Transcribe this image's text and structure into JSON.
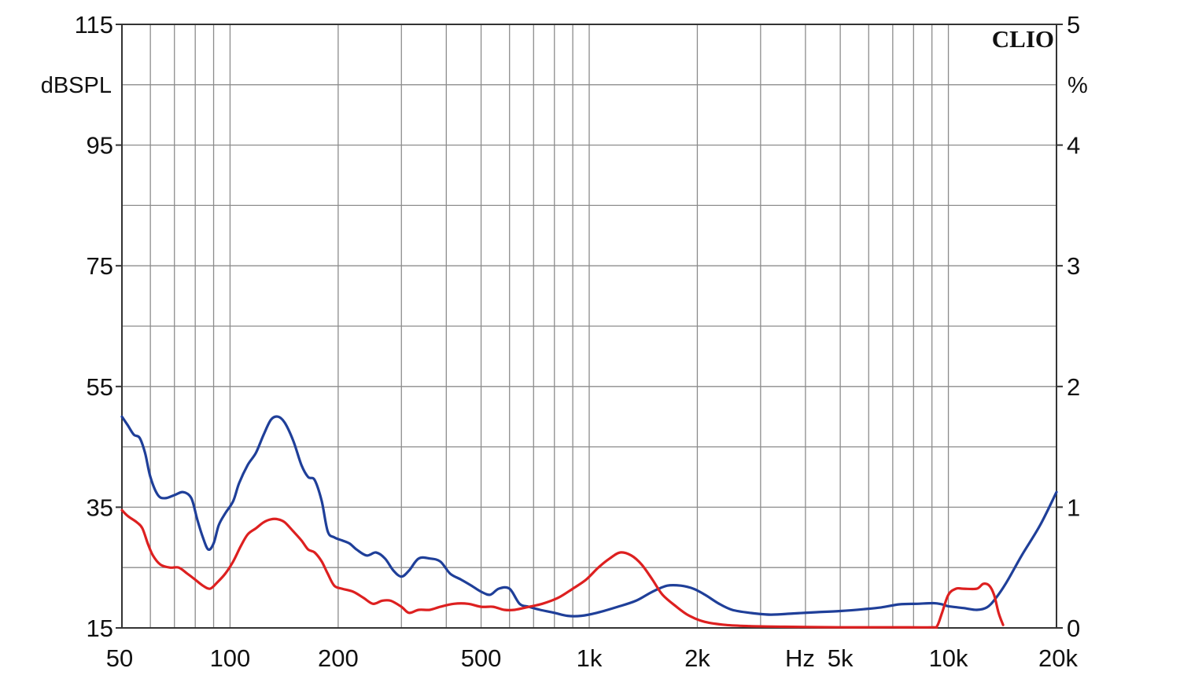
{
  "chart_data": {
    "type": "line",
    "brand": "CLIO",
    "x_scale": "log",
    "xlim": [
      50,
      20000
    ],
    "x_ticks": [
      {
        "value": 50,
        "label": "50"
      },
      {
        "value": 100,
        "label": "100"
      },
      {
        "value": 200,
        "label": "200"
      },
      {
        "value": 500,
        "label": "500"
      },
      {
        "value": 1000,
        "label": "1k"
      },
      {
        "value": 2000,
        "label": "2k"
      },
      {
        "value": 5000,
        "label": "5k"
      },
      {
        "value": 10000,
        "label": "10k"
      },
      {
        "value": 20000,
        "label": "20k"
      }
    ],
    "x_unit": "Hz",
    "y_left": {
      "unit": "dBSPL",
      "lim": [
        15,
        115
      ],
      "ticks": [
        {
          "value": 115,
          "label": "115"
        },
        {
          "value": 95,
          "label": "95"
        },
        {
          "value": 75,
          "label": "75"
        },
        {
          "value": 55,
          "label": "55"
        },
        {
          "value": 35,
          "label": "35"
        },
        {
          "value": 15,
          "label": "15"
        }
      ]
    },
    "y_right": {
      "unit": "%",
      "lim": [
        0,
        5
      ],
      "ticks": [
        {
          "value": 5,
          "label": "5"
        },
        {
          "value": 4,
          "label": "4"
        },
        {
          "value": 3,
          "label": "3"
        },
        {
          "value": 2,
          "label": "2"
        },
        {
          "value": 1,
          "label": "1"
        },
        {
          "value": 0,
          "label": "0"
        }
      ]
    },
    "grid": true,
    "series": [
      {
        "color": "#1f3f99",
        "points": [
          [
            50,
            50
          ],
          [
            52,
            48.5
          ],
          [
            54,
            47
          ],
          [
            56,
            46.5
          ],
          [
            58,
            44
          ],
          [
            60,
            40
          ],
          [
            63,
            37
          ],
          [
            66,
            36.5
          ],
          [
            70,
            37
          ],
          [
            74,
            37.5
          ],
          [
            78,
            36.5
          ],
          [
            81,
            33
          ],
          [
            84,
            30
          ],
          [
            87,
            28
          ],
          [
            90,
            29
          ],
          [
            93,
            32
          ],
          [
            97,
            34
          ],
          [
            102,
            36
          ],
          [
            106,
            39
          ],
          [
            112,
            42
          ],
          [
            118,
            44
          ],
          [
            124,
            47
          ],
          [
            130,
            49.5
          ],
          [
            136,
            50
          ],
          [
            142,
            49
          ],
          [
            150,
            46
          ],
          [
            158,
            42
          ],
          [
            165,
            40
          ],
          [
            172,
            39.5
          ],
          [
            180,
            36
          ],
          [
            187,
            31
          ],
          [
            195,
            30
          ],
          [
            205,
            29.5
          ],
          [
            215,
            29
          ],
          [
            225,
            28
          ],
          [
            240,
            27
          ],
          [
            255,
            27.5
          ],
          [
            270,
            26.5
          ],
          [
            285,
            24.5
          ],
          [
            300,
            23.5
          ],
          [
            315,
            24.5
          ],
          [
            335,
            26.5
          ],
          [
            360,
            26.5
          ],
          [
            385,
            26
          ],
          [
            410,
            24
          ],
          [
            440,
            23
          ],
          [
            470,
            22
          ],
          [
            500,
            21
          ],
          [
            530,
            20.5
          ],
          [
            560,
            21.5
          ],
          [
            600,
            21.5
          ],
          [
            640,
            19
          ],
          [
            680,
            18.5
          ],
          [
            730,
            18
          ],
          [
            800,
            17.5
          ],
          [
            870,
            17
          ],
          [
            950,
            17
          ],
          [
            1050,
            17.5
          ],
          [
            1200,
            18.5
          ],
          [
            1350,
            19.5
          ],
          [
            1500,
            21
          ],
          [
            1650,
            22
          ],
          [
            1800,
            22
          ],
          [
            1950,
            21.5
          ],
          [
            2100,
            20.5
          ],
          [
            2300,
            19
          ],
          [
            2500,
            18
          ],
          [
            2800,
            17.5
          ],
          [
            3200,
            17.2
          ],
          [
            3700,
            17.4
          ],
          [
            4300,
            17.6
          ],
          [
            5000,
            17.8
          ],
          [
            5800,
            18.1
          ],
          [
            6500,
            18.4
          ],
          [
            7300,
            18.9
          ],
          [
            8200,
            19
          ],
          [
            9100,
            19.1
          ],
          [
            9600,
            18.9
          ],
          [
            10000,
            18.6
          ],
          [
            11000,
            18.3
          ],
          [
            12000,
            18
          ],
          [
            12800,
            18.4
          ],
          [
            13500,
            19.8
          ],
          [
            14500,
            22.5
          ],
          [
            16000,
            27
          ],
          [
            18000,
            32
          ],
          [
            20000,
            37.5
          ]
        ]
      },
      {
        "color": "#dd2020",
        "points": [
          [
            50,
            34.5
          ],
          [
            52,
            33.5
          ],
          [
            55,
            32.5
          ],
          [
            57,
            31.5
          ],
          [
            59,
            29
          ],
          [
            61,
            27
          ],
          [
            64,
            25.5
          ],
          [
            68,
            25
          ],
          [
            72,
            25
          ],
          [
            76,
            24
          ],
          [
            80,
            23
          ],
          [
            84,
            22
          ],
          [
            88,
            21.5
          ],
          [
            92,
            22.5
          ],
          [
            97,
            24
          ],
          [
            102,
            26
          ],
          [
            107,
            28.5
          ],
          [
            112,
            30.5
          ],
          [
            118,
            31.5
          ],
          [
            124,
            32.5
          ],
          [
            130,
            33
          ],
          [
            136,
            33
          ],
          [
            142,
            32.5
          ],
          [
            150,
            31
          ],
          [
            158,
            29.5
          ],
          [
            165,
            28
          ],
          [
            172,
            27.5
          ],
          [
            180,
            26
          ],
          [
            187,
            24
          ],
          [
            195,
            22
          ],
          [
            205,
            21.5
          ],
          [
            220,
            21
          ],
          [
            235,
            20
          ],
          [
            250,
            19
          ],
          [
            265,
            19.5
          ],
          [
            280,
            19.5
          ],
          [
            300,
            18.5
          ],
          [
            315,
            17.5
          ],
          [
            335,
            18
          ],
          [
            360,
            18
          ],
          [
            385,
            18.5
          ],
          [
            420,
            19
          ],
          [
            460,
            19
          ],
          [
            500,
            18.5
          ],
          [
            540,
            18.5
          ],
          [
            580,
            18
          ],
          [
            620,
            18
          ],
          [
            680,
            18.5
          ],
          [
            740,
            19
          ],
          [
            820,
            20
          ],
          [
            900,
            21.5
          ],
          [
            980,
            23
          ],
          [
            1060,
            25
          ],
          [
            1140,
            26.5
          ],
          [
            1220,
            27.5
          ],
          [
            1310,
            27
          ],
          [
            1400,
            25.5
          ],
          [
            1500,
            23
          ],
          [
            1600,
            20.5
          ],
          [
            1750,
            18.5
          ],
          [
            1900,
            17
          ],
          [
            2100,
            16
          ],
          [
            2400,
            15.5
          ],
          [
            2800,
            15.3
          ],
          [
            3500,
            15.2
          ],
          [
            5000,
            15.1
          ],
          [
            7000,
            15.1
          ],
          [
            9000,
            15.1
          ],
          [
            9300,
            15.3
          ],
          [
            9600,
            17.5
          ],
          [
            10000,
            20.5
          ],
          [
            10500,
            21.5
          ],
          [
            11000,
            21.5
          ],
          [
            12000,
            21.5
          ],
          [
            12500,
            22.3
          ],
          [
            13000,
            22
          ],
          [
            13400,
            20.5
          ],
          [
            13800,
            17.5
          ],
          [
            14200,
            15.5
          ]
        ]
      }
    ]
  }
}
